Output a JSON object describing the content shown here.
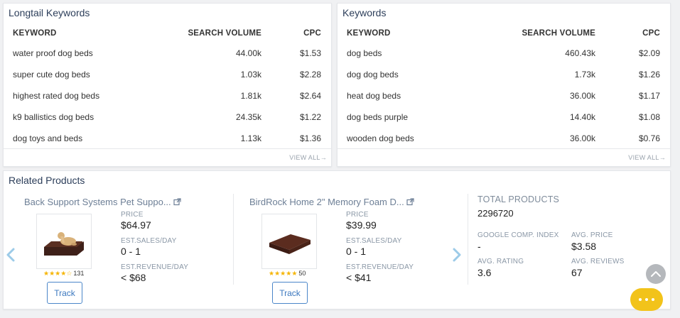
{
  "longtail": {
    "title": "Longtail Keywords",
    "headers": {
      "keyword": "KEYWORD",
      "volume": "SEARCH VOLUME",
      "cpc": "CPC"
    },
    "rows": [
      {
        "keyword": "water proof dog beds",
        "volume": "44.00k",
        "cpc": "$1.53"
      },
      {
        "keyword": "super cute dog beds",
        "volume": "1.03k",
        "cpc": "$2.28"
      },
      {
        "keyword": "highest rated dog beds",
        "volume": "1.81k",
        "cpc": "$2.64"
      },
      {
        "keyword": "k9 ballistics dog beds",
        "volume": "24.35k",
        "cpc": "$1.22"
      },
      {
        "keyword": "dog toys and beds",
        "volume": "1.13k",
        "cpc": "$1.36"
      }
    ],
    "view_all": "VIEW ALL→"
  },
  "keywords": {
    "title": "Keywords",
    "headers": {
      "keyword": "KEYWORD",
      "volume": "SEARCH VOLUME",
      "cpc": "CPC"
    },
    "rows": [
      {
        "keyword": "dog beds",
        "volume": "460.43k",
        "cpc": "$2.09"
      },
      {
        "keyword": "dog dog beds",
        "volume": "1.73k",
        "cpc": "$1.26"
      },
      {
        "keyword": "heat dog beds",
        "volume": "36.00k",
        "cpc": "$1.17"
      },
      {
        "keyword": "dog beds purple",
        "volume": "14.40k",
        "cpc": "$1.08"
      },
      {
        "keyword": "wooden dog beds",
        "volume": "36.00k",
        "cpc": "$0.76"
      }
    ],
    "view_all": "VIEW ALL→"
  },
  "related": {
    "title": "Related Products",
    "products": [
      {
        "title": "Back Support Systems Pet Suppo...",
        "rating": 4,
        "review_count": "131",
        "price_label": "PRICE",
        "price": "$64.97",
        "sales_label": "EST.SALES/DAY",
        "sales": "0 - 1",
        "revenue_label": "EST.REVENUE/DAY",
        "revenue": "< $68",
        "track_label": "Track"
      },
      {
        "title": "BirdRock Home 2\" Memory Foam D...",
        "rating": 5,
        "review_count": "50",
        "price_label": "PRICE",
        "price": "$39.99",
        "sales_label": "EST.SALES/DAY",
        "sales": "0 - 1",
        "revenue_label": "EST.REVENUE/DAY",
        "revenue": "< $41",
        "track_label": "Track"
      }
    ],
    "stats": {
      "total_label": "TOTAL PRODUCTS",
      "total_value": "2296720",
      "google_label": "GOOGLE COMP. INDEX",
      "google_value": "-",
      "avg_price_label": "AVG. PRICE",
      "avg_price_value": "$3.58",
      "avg_rating_label": "AVG. RATING",
      "avg_rating_value": "3.6",
      "avg_reviews_label": "AVG. REVIEWS",
      "avg_reviews_value": "67"
    }
  },
  "colors": {
    "accent": "#3c78bf",
    "star": "#f5b400",
    "chat": "#f2c31a",
    "arrow": "#9ccbe8"
  },
  "icons": {
    "prev": "chevron-left-icon",
    "next": "chevron-right-icon",
    "external": "external-link-icon",
    "scroll_top": "chevron-up-icon",
    "chat": "more-dots-icon"
  }
}
